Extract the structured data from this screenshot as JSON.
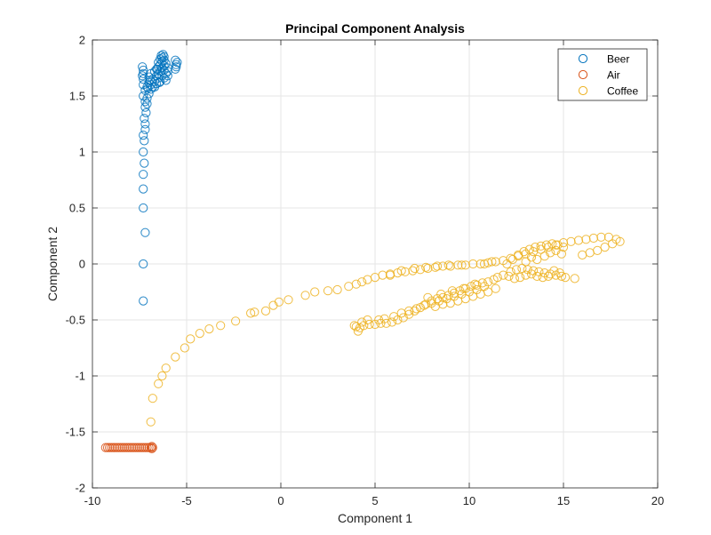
{
  "chart_data": {
    "type": "scatter",
    "title": "Principal Component Analysis",
    "xlabel": "Component 1",
    "ylabel": "Component 2",
    "xlim": [
      -10,
      20
    ],
    "ylim": [
      -2,
      2
    ],
    "xticks": [
      -10,
      -5,
      0,
      5,
      10,
      15,
      20
    ],
    "yticks": [
      -2,
      -1.5,
      -1,
      -0.5,
      0,
      0.5,
      1,
      1.5,
      2
    ],
    "xtick_labels": [
      "-10",
      "-5",
      "0",
      "5",
      "10",
      "15",
      "20"
    ],
    "ytick_labels": [
      "-2",
      "-1.5",
      "-1",
      "-0.5",
      "0",
      "0.5",
      "1",
      "1.5",
      "2"
    ],
    "grid": true,
    "legend_position": "top-right",
    "marker": "open-circle",
    "series": [
      {
        "name": "Beer",
        "color": "#0072BD",
        "points": [
          [
            -7.3,
            -0.33
          ],
          [
            -7.3,
            0.0
          ],
          [
            -7.2,
            0.28
          ],
          [
            -7.3,
            0.5
          ],
          [
            -7.3,
            0.67
          ],
          [
            -7.3,
            0.8
          ],
          [
            -7.25,
            0.9
          ],
          [
            -7.3,
            1.0
          ],
          [
            -7.25,
            1.1
          ],
          [
            -7.3,
            1.15
          ],
          [
            -7.2,
            1.2
          ],
          [
            -7.2,
            1.25
          ],
          [
            -7.25,
            1.3
          ],
          [
            -7.15,
            1.35
          ],
          [
            -7.2,
            1.4
          ],
          [
            -7.1,
            1.43
          ],
          [
            -7.2,
            1.45
          ],
          [
            -7.1,
            1.48
          ],
          [
            -7.3,
            1.5
          ],
          [
            -7.0,
            1.52
          ],
          [
            -7.2,
            1.55
          ],
          [
            -6.9,
            1.56
          ],
          [
            -7.1,
            1.58
          ],
          [
            -6.8,
            1.58
          ],
          [
            -7.3,
            1.6
          ],
          [
            -6.9,
            1.6
          ],
          [
            -6.6,
            1.61
          ],
          [
            -7.0,
            1.62
          ],
          [
            -6.7,
            1.63
          ],
          [
            -6.4,
            1.63
          ],
          [
            -7.3,
            1.65
          ],
          [
            -6.8,
            1.65
          ],
          [
            -6.5,
            1.66
          ],
          [
            -6.2,
            1.66
          ],
          [
            -7.0,
            1.67
          ],
          [
            -6.6,
            1.68
          ],
          [
            -6.3,
            1.68
          ],
          [
            -6.0,
            1.68
          ],
          [
            -6.9,
            1.7
          ],
          [
            -6.5,
            1.7
          ],
          [
            -6.1,
            1.7
          ],
          [
            -6.7,
            1.72
          ],
          [
            -6.4,
            1.72
          ],
          [
            -6.2,
            1.73
          ],
          [
            -7.3,
            1.73
          ],
          [
            -6.6,
            1.74
          ],
          [
            -6.3,
            1.75
          ],
          [
            -6.0,
            1.75
          ],
          [
            -6.5,
            1.76
          ],
          [
            -6.2,
            1.77
          ],
          [
            -6.4,
            1.78
          ],
          [
            -6.1,
            1.79
          ],
          [
            -6.5,
            1.8
          ],
          [
            -6.3,
            1.81
          ],
          [
            -6.2,
            1.82
          ],
          [
            -6.4,
            1.83
          ],
          [
            -6.3,
            1.84
          ],
          [
            -6.2,
            1.85
          ],
          [
            -6.35,
            1.86
          ],
          [
            -6.25,
            1.87
          ],
          [
            -7.35,
            1.76
          ],
          [
            -7.3,
            1.7
          ],
          [
            -7.35,
            1.68
          ],
          [
            -5.6,
            1.74
          ],
          [
            -5.55,
            1.78
          ],
          [
            -5.6,
            1.82
          ],
          [
            -5.5,
            1.8
          ],
          [
            -5.55,
            1.76
          ],
          [
            -6.1,
            1.64
          ],
          [
            -6.0,
            1.72
          ],
          [
            -6.45,
            1.62
          ],
          [
            -6.7,
            1.58
          ],
          [
            -6.95,
            1.64
          ],
          [
            -7.05,
            1.57
          ],
          [
            -6.55,
            1.74
          ]
        ]
      },
      {
        "name": "Air",
        "color": "#D95319",
        "points": [
          [
            -9.3,
            -1.64
          ],
          [
            -9.1,
            -1.64
          ],
          [
            -8.9,
            -1.64
          ],
          [
            -8.7,
            -1.64
          ],
          [
            -8.5,
            -1.64
          ],
          [
            -8.3,
            -1.64
          ],
          [
            -8.1,
            -1.64
          ],
          [
            -7.9,
            -1.64
          ],
          [
            -7.7,
            -1.64
          ],
          [
            -7.5,
            -1.64
          ],
          [
            -7.3,
            -1.64
          ],
          [
            -7.1,
            -1.64
          ],
          [
            -6.9,
            -1.64
          ],
          [
            -9.2,
            -1.64
          ],
          [
            -9.0,
            -1.64
          ],
          [
            -8.8,
            -1.64
          ],
          [
            -8.6,
            -1.64
          ],
          [
            -8.4,
            -1.64
          ],
          [
            -8.2,
            -1.64
          ],
          [
            -8.0,
            -1.64
          ],
          [
            -7.8,
            -1.64
          ],
          [
            -7.6,
            -1.64
          ],
          [
            -7.4,
            -1.64
          ],
          [
            -7.2,
            -1.64
          ],
          [
            -7.0,
            -1.64
          ],
          [
            -6.85,
            -1.63
          ],
          [
            -6.8,
            -1.64
          ],
          [
            -6.85,
            -1.65
          ]
        ]
      },
      {
        "name": "Coffee",
        "color": "#EDB120",
        "points": [
          [
            -6.9,
            -1.41
          ],
          [
            -6.8,
            -1.2
          ],
          [
            -6.5,
            -1.07
          ],
          [
            -6.3,
            -1.0
          ],
          [
            -6.1,
            -0.93
          ],
          [
            -5.6,
            -0.83
          ],
          [
            -5.1,
            -0.75
          ],
          [
            -4.8,
            -0.67
          ],
          [
            -4.3,
            -0.62
          ],
          [
            -3.8,
            -0.58
          ],
          [
            -3.2,
            -0.55
          ],
          [
            -2.4,
            -0.51
          ],
          [
            -1.6,
            -0.44
          ],
          [
            -1.4,
            -0.43
          ],
          [
            -0.8,
            -0.42
          ],
          [
            -0.4,
            -0.37
          ],
          [
            -0.1,
            -0.34
          ],
          [
            0.4,
            -0.32
          ],
          [
            1.3,
            -0.28
          ],
          [
            1.8,
            -0.25
          ],
          [
            2.5,
            -0.24
          ],
          [
            3.0,
            -0.23
          ],
          [
            3.6,
            -0.2
          ],
          [
            4.0,
            -0.18
          ],
          [
            4.3,
            -0.16
          ],
          [
            4.6,
            -0.14
          ],
          [
            5.0,
            -0.12
          ],
          [
            5.4,
            -0.1
          ],
          [
            5.8,
            -0.09
          ],
          [
            6.2,
            -0.08
          ],
          [
            6.6,
            -0.07
          ],
          [
            7.0,
            -0.06
          ],
          [
            7.4,
            -0.05
          ],
          [
            7.8,
            -0.04
          ],
          [
            8.2,
            -0.03
          ],
          [
            8.6,
            -0.02
          ],
          [
            9.0,
            -0.02
          ],
          [
            9.4,
            -0.01
          ],
          [
            9.8,
            -0.01
          ],
          [
            10.2,
            0.0
          ],
          [
            10.6,
            0.0
          ],
          [
            11.0,
            0.01
          ],
          [
            11.4,
            0.02
          ],
          [
            11.8,
            0.03
          ],
          [
            12.2,
            0.05
          ],
          [
            12.6,
            0.07
          ],
          [
            13.0,
            0.09
          ],
          [
            13.4,
            0.11
          ],
          [
            13.8,
            0.13
          ],
          [
            14.2,
            0.15
          ],
          [
            14.6,
            0.17
          ],
          [
            15.0,
            0.19
          ],
          [
            15.4,
            0.2
          ],
          [
            15.8,
            0.21
          ],
          [
            16.2,
            0.22
          ],
          [
            16.6,
            0.23
          ],
          [
            17.0,
            0.24
          ],
          [
            17.4,
            0.24
          ],
          [
            17.8,
            0.22
          ],
          [
            18.0,
            0.2
          ],
          [
            17.6,
            0.18
          ],
          [
            17.2,
            0.15
          ],
          [
            16.8,
            0.12
          ],
          [
            16.4,
            0.1
          ],
          [
            16.0,
            0.08
          ],
          [
            12.0,
            0.0
          ],
          [
            12.3,
            0.04
          ],
          [
            12.6,
            0.08
          ],
          [
            12.9,
            0.11
          ],
          [
            13.2,
            0.13
          ],
          [
            13.5,
            0.15
          ],
          [
            13.8,
            0.16
          ],
          [
            14.1,
            0.17
          ],
          [
            14.4,
            0.18
          ],
          [
            14.7,
            0.17
          ],
          [
            15.0,
            0.15
          ],
          [
            12.2,
            -0.07
          ],
          [
            12.5,
            -0.05
          ],
          [
            12.8,
            -0.04
          ],
          [
            13.1,
            -0.05
          ],
          [
            13.4,
            -0.06
          ],
          [
            13.7,
            -0.07
          ],
          [
            14.0,
            -0.08
          ],
          [
            14.3,
            -0.09
          ],
          [
            14.6,
            -0.1
          ],
          [
            14.9,
            -0.11
          ],
          [
            15.6,
            -0.13
          ],
          [
            11.5,
            -0.12
          ],
          [
            11.8,
            -0.1
          ],
          [
            12.1,
            -0.11
          ],
          [
            12.4,
            -0.13
          ],
          [
            12.7,
            -0.12
          ],
          [
            13.0,
            -0.1
          ],
          [
            13.3,
            -0.09
          ],
          [
            13.6,
            -0.11
          ],
          [
            13.9,
            -0.12
          ],
          [
            14.2,
            -0.11
          ],
          [
            11.0,
            -0.16
          ],
          [
            11.3,
            -0.14
          ],
          [
            10.7,
            -0.17
          ],
          [
            10.4,
            -0.19
          ],
          [
            10.1,
            -0.2
          ],
          [
            9.8,
            -0.22
          ],
          [
            9.5,
            -0.24
          ],
          [
            9.2,
            -0.26
          ],
          [
            8.9,
            -0.28
          ],
          [
            8.6,
            -0.3
          ],
          [
            8.3,
            -0.31
          ],
          [
            8.0,
            -0.33
          ],
          [
            7.7,
            -0.36
          ],
          [
            7.4,
            -0.39
          ],
          [
            7.1,
            -0.42
          ],
          [
            6.8,
            -0.45
          ],
          [
            6.5,
            -0.48
          ],
          [
            6.2,
            -0.5
          ],
          [
            5.9,
            -0.52
          ],
          [
            5.6,
            -0.53
          ],
          [
            5.3,
            -0.53
          ],
          [
            5.0,
            -0.54
          ],
          [
            4.7,
            -0.54
          ],
          [
            4.4,
            -0.55
          ],
          [
            4.2,
            -0.57
          ],
          [
            4.1,
            -0.6
          ],
          [
            4.0,
            -0.56
          ],
          [
            3.9,
            -0.55
          ],
          [
            4.3,
            -0.52
          ],
          [
            4.6,
            -0.5
          ],
          [
            5.2,
            -0.5
          ],
          [
            5.5,
            -0.49
          ],
          [
            6.0,
            -0.47
          ],
          [
            6.4,
            -0.44
          ],
          [
            6.8,
            -0.42
          ],
          [
            7.2,
            -0.4
          ],
          [
            7.6,
            -0.37
          ],
          [
            8.0,
            -0.35
          ],
          [
            8.4,
            -0.33
          ],
          [
            8.8,
            -0.31
          ],
          [
            9.2,
            -0.29
          ],
          [
            9.6,
            -0.27
          ],
          [
            10.0,
            -0.25
          ],
          [
            10.4,
            -0.23
          ],
          [
            10.8,
            -0.2
          ],
          [
            8.2,
            -0.38
          ],
          [
            8.6,
            -0.36
          ],
          [
            9.0,
            -0.35
          ],
          [
            9.4,
            -0.33
          ],
          [
            9.8,
            -0.31
          ],
          [
            10.2,
            -0.29
          ],
          [
            10.6,
            -0.27
          ],
          [
            11.0,
            -0.25
          ],
          [
            11.4,
            -0.22
          ],
          [
            7.8,
            -0.3
          ],
          [
            8.5,
            -0.27
          ],
          [
            9.1,
            -0.24
          ],
          [
            9.7,
            -0.22
          ],
          [
            10.3,
            -0.18
          ],
          [
            13.0,
            0.02
          ],
          [
            13.3,
            0.06
          ],
          [
            13.6,
            0.04
          ],
          [
            14.0,
            0.07
          ],
          [
            14.3,
            0.1
          ],
          [
            14.6,
            0.12
          ],
          [
            14.9,
            0.09
          ],
          [
            15.1,
            -0.12
          ],
          [
            14.8,
            -0.08
          ],
          [
            14.5,
            -0.06
          ],
          [
            5.8,
            -0.1
          ],
          [
            6.4,
            -0.06
          ],
          [
            7.1,
            -0.04
          ],
          [
            7.7,
            -0.03
          ],
          [
            8.3,
            -0.02
          ],
          [
            8.9,
            -0.01
          ],
          [
            9.6,
            -0.01
          ],
          [
            10.8,
            0.0
          ],
          [
            11.2,
            0.02
          ]
        ]
      }
    ]
  }
}
